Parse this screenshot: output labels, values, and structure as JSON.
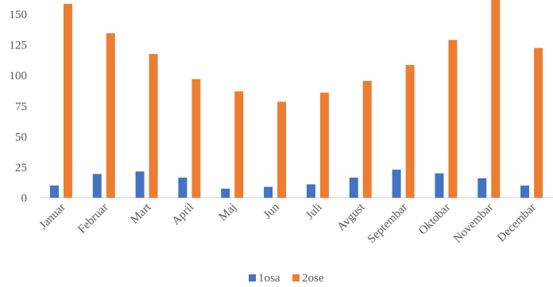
{
  "chart_data": {
    "type": "bar",
    "categories": [
      "Januar",
      "Februar",
      "Mart",
      "April",
      "Maj",
      "Jun",
      "Juli",
      "Avgust",
      "Septembar",
      "Oktobar",
      "Novembar",
      "Decembar"
    ],
    "series": [
      {
        "name": "1osa",
        "color": "#4472C4",
        "values": [
          10,
          19.5,
          21.5,
          16.5,
          7.5,
          9,
          11,
          16.5,
          23,
          20,
          16,
          10
        ]
      },
      {
        "name": "2ose",
        "color": "#ED7D31",
        "values": [
          158.5,
          134.5,
          117.5,
          97,
          87,
          78.5,
          86,
          95.5,
          108.5,
          129,
          163,
          122.5
        ]
      }
    ],
    "yticks": [
      "0",
      "25",
      "50",
      "75",
      "100",
      "125",
      "150"
    ],
    "ylim": [
      0,
      162
    ],
    "grid": false,
    "legend": "bottom-center",
    "title": "",
    "xlabel": "",
    "ylabel": ""
  }
}
